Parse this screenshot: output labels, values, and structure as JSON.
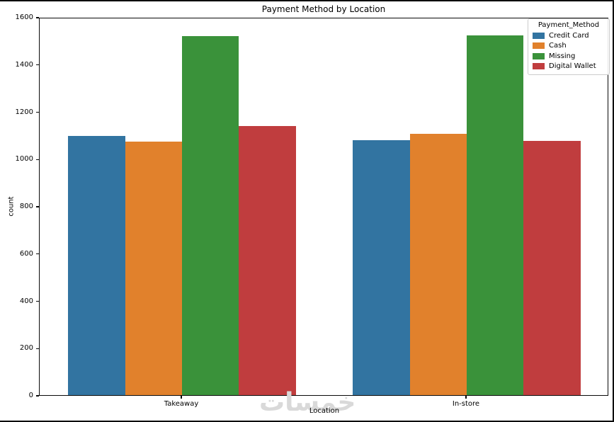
{
  "chart_data": {
    "type": "bar",
    "title": "Payment Method by Location",
    "xlabel": "Location",
    "ylabel": "count",
    "categories": [
      "Takeaway",
      "In-store"
    ],
    "series": [
      {
        "name": "Credit Card",
        "color": "#3274a1",
        "values": [
          1097,
          1080
        ]
      },
      {
        "name": "Cash",
        "color": "#e1812c",
        "values": [
          1072,
          1105
        ]
      },
      {
        "name": "Missing",
        "color": "#3a923a",
        "values": [
          1519,
          1523
        ]
      },
      {
        "name": "Digital Wallet",
        "color": "#c03d3e",
        "values": [
          1138,
          1076
        ]
      }
    ],
    "legend": {
      "title": "Payment_Method",
      "position": "upper right"
    },
    "ylim": [
      0,
      1600
    ],
    "yticks": [
      0,
      200,
      400,
      600,
      800,
      1000,
      1200,
      1400,
      1600
    ],
    "grid": false,
    "bar_group_width": 0.8
  },
  "watermark": {
    "text": "خمسات",
    "color": "#d9d9d9"
  }
}
